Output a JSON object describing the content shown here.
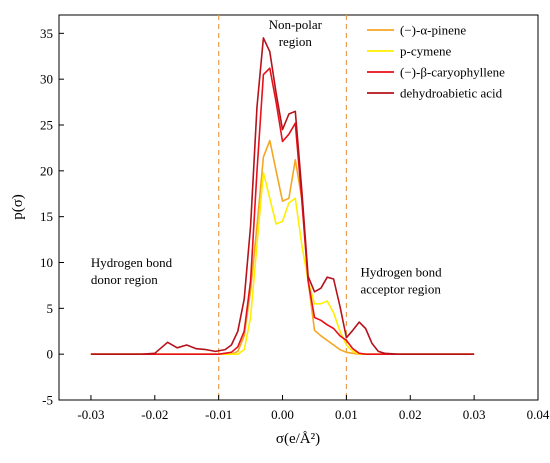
{
  "chart_data": {
    "type": "line",
    "xlabel": "σ(e/Å²)",
    "ylabel": "p(σ)",
    "xlim": [
      -0.035,
      0.04
    ],
    "ylim": [
      -5,
      37
    ],
    "xticks": [
      -0.03,
      -0.02,
      -0.01,
      0.0,
      0.01,
      0.02,
      0.03,
      0.04
    ],
    "xtick_labels": [
      "-0.03",
      "-0.02",
      "-0.01",
      "0.00",
      "0.01",
      "0.02",
      "0.03",
      "0.04"
    ],
    "yticks": [
      -5,
      0,
      5,
      10,
      15,
      20,
      25,
      30,
      35
    ],
    "ytick_labels": [
      "-5",
      "0",
      "5",
      "10",
      "15",
      "20",
      "25",
      "30",
      "35"
    ],
    "vlines": [
      -0.01,
      0.01
    ],
    "legend_position": "top-right",
    "annotations": [
      {
        "lines": [
          "Non-polar",
          "region"
        ],
        "x": 0.002,
        "y": 35.5,
        "anchor": "middle"
      },
      {
        "lines": [
          "Hydrogen bond",
          "donor region"
        ],
        "x": -0.03,
        "y": 9.5,
        "anchor": "start"
      },
      {
        "lines": [
          "Hydrogen bond",
          "acceptor region"
        ],
        "x": 0.0122,
        "y": 8.5,
        "anchor": "start"
      }
    ],
    "series": [
      {
        "name": "(−)-α-pinene",
        "color": "#f5a623",
        "x": [
          -0.03,
          -0.01,
          -0.008,
          -0.007,
          -0.006,
          -0.005,
          -0.004,
          -0.003,
          -0.002,
          -0.001,
          0.0,
          0.001,
          0.002,
          0.003,
          0.004,
          0.005,
          0.006,
          0.007,
          0.008,
          0.009,
          0.01,
          0.011,
          0.012,
          0.013,
          0.03
        ],
        "y": [
          0,
          0,
          0,
          0.3,
          2,
          7,
          14,
          21.5,
          23.3,
          20,
          16.7,
          17,
          21.2,
          17,
          8,
          2.6,
          2.0,
          1.5,
          1.0,
          0.5,
          0.2,
          0.1,
          0,
          0,
          0
        ]
      },
      {
        "name": "p-cymene",
        "color": "#ffee00",
        "x": [
          -0.03,
          -0.009,
          -0.007,
          -0.006,
          -0.005,
          -0.004,
          -0.003,
          -0.002,
          -0.001,
          0.0,
          0.001,
          0.002,
          0.003,
          0.004,
          0.005,
          0.006,
          0.007,
          0.008,
          0.009,
          0.01,
          0.011,
          0.012,
          0.03
        ],
        "y": [
          0,
          0,
          0,
          0.5,
          4,
          12,
          19.8,
          17,
          14.2,
          14.5,
          16.5,
          17,
          12,
          8,
          5.5,
          5.5,
          5.8,
          4.5,
          2.5,
          1,
          0.3,
          0,
          0
        ]
      },
      {
        "name": "(−)-β-caryophyllene",
        "color": "#e8101a",
        "x": [
          -0.03,
          -0.01,
          -0.008,
          -0.007,
          -0.006,
          -0.005,
          -0.004,
          -0.003,
          -0.002,
          -0.001,
          0.0,
          0.001,
          0.002,
          0.003,
          0.004,
          0.005,
          0.006,
          0.007,
          0.008,
          0.009,
          0.01,
          0.011,
          0.012,
          0.013,
          0.03
        ],
        "y": [
          0,
          0,
          0.2,
          0.8,
          2.5,
          8,
          20,
          30.5,
          31.2,
          27.5,
          23.2,
          24,
          25.2,
          17,
          8,
          4.0,
          3.7,
          3.2,
          2.8,
          2.0,
          1.5,
          0.6,
          0.1,
          0,
          0
        ]
      },
      {
        "name": "dehydroabietic acid",
        "color": "#b5121b",
        "x": [
          -0.03,
          -0.022,
          -0.02,
          -0.018,
          -0.0165,
          -0.015,
          -0.0135,
          -0.012,
          -0.0105,
          -0.009,
          -0.008,
          -0.007,
          -0.006,
          -0.005,
          -0.004,
          -0.003,
          -0.002,
          -0.001,
          0.0,
          0.001,
          0.002,
          0.003,
          0.004,
          0.005,
          0.006,
          0.007,
          0.008,
          0.009,
          0.01,
          0.011,
          0.012,
          0.013,
          0.014,
          0.015,
          0.016,
          0.018,
          0.03
        ],
        "y": [
          0,
          0,
          0.1,
          1.3,
          0.7,
          1.0,
          0.6,
          0.5,
          0.3,
          0.5,
          1.0,
          2.5,
          6,
          14,
          27,
          34.5,
          33.0,
          28.5,
          24.5,
          26.2,
          26.5,
          18,
          8.5,
          6.8,
          7.2,
          8.4,
          8.2,
          5.2,
          1.8,
          2.6,
          3.5,
          2.8,
          1.2,
          0.3,
          0.1,
          0,
          0
        ]
      }
    ]
  }
}
